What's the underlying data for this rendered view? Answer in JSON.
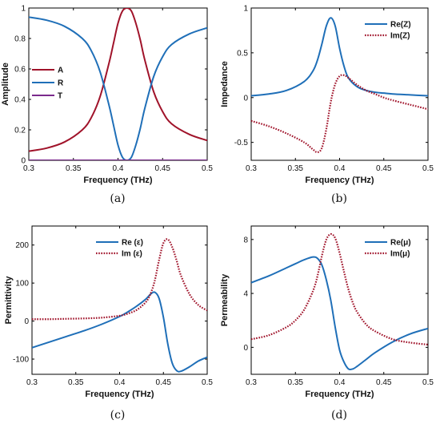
{
  "colors": {
    "dark_red": "#A0132A",
    "blue": "#1F6FB8",
    "purple": "#7B2A8C",
    "axis": "#000000"
  },
  "chart_data": [
    {
      "panel": "(a)",
      "type": "line",
      "xlabel": "Frequency (THz)",
      "ylabel": "Amplitude",
      "xlim": [
        0.3,
        0.5
      ],
      "ylim": [
        0,
        1
      ],
      "xticks": [
        "0.3",
        "0.35",
        "0.4",
        "0.45",
        "0.5"
      ],
      "yticks": [
        "0",
        "0.2",
        "0.4",
        "0.6",
        "0.8",
        "1"
      ],
      "legend": "left",
      "x": [
        0.3,
        0.32,
        0.34,
        0.36,
        0.37,
        0.38,
        0.39,
        0.395,
        0.4,
        0.405,
        0.41,
        0.415,
        0.42,
        0.425,
        0.43,
        0.44,
        0.45,
        0.46,
        0.48,
        0.5
      ],
      "series": [
        {
          "name": "A",
          "color": "#A0132A",
          "dash": "solid",
          "values": [
            0.06,
            0.08,
            0.12,
            0.2,
            0.28,
            0.42,
            0.64,
            0.77,
            0.9,
            0.98,
            1.0,
            0.98,
            0.9,
            0.79,
            0.66,
            0.45,
            0.32,
            0.24,
            0.17,
            0.13
          ]
        },
        {
          "name": "R",
          "color": "#1F6FB8",
          "dash": "solid",
          "values": [
            0.94,
            0.92,
            0.88,
            0.8,
            0.72,
            0.58,
            0.36,
            0.23,
            0.1,
            0.02,
            0.0,
            0.02,
            0.1,
            0.21,
            0.34,
            0.55,
            0.68,
            0.76,
            0.83,
            0.87
          ]
        },
        {
          "name": "T",
          "color": "#7B2A8C",
          "dash": "solid",
          "values": [
            0,
            0,
            0,
            0,
            0,
            0,
            0,
            0,
            0,
            0,
            0,
            0,
            0,
            0,
            0,
            0,
            0,
            0,
            0,
            0
          ]
        }
      ]
    },
    {
      "panel": "(b)",
      "type": "line",
      "xlabel": "Frequency (THz)",
      "ylabel": "Impedance",
      "xlim": [
        0.3,
        0.5
      ],
      "ylim": [
        -0.7,
        1.0
      ],
      "xticks": [
        "0.3",
        "0.35",
        "0.4",
        "0.45",
        "0.5"
      ],
      "yticks": [
        "-0.5",
        "0",
        "0.5",
        "1"
      ],
      "ytick_values": [
        -0.5,
        0,
        0.5,
        1
      ],
      "legend": "top-right",
      "x": [
        0.3,
        0.32,
        0.34,
        0.36,
        0.37,
        0.375,
        0.38,
        0.385,
        0.39,
        0.395,
        0.4,
        0.405,
        0.41,
        0.42,
        0.43,
        0.44,
        0.45,
        0.46,
        0.48,
        0.5
      ],
      "series": [
        {
          "name": "Re(Z)",
          "color": "#1F6FB8",
          "dash": "solid",
          "values": [
            0.02,
            0.04,
            0.08,
            0.18,
            0.3,
            0.42,
            0.6,
            0.8,
            0.89,
            0.8,
            0.55,
            0.35,
            0.22,
            0.12,
            0.08,
            0.06,
            0.05,
            0.04,
            0.03,
            0.02
          ]
        },
        {
          "name": "Im(Z)",
          "color": "#A0132A",
          "dash": "dotted",
          "values": [
            -0.26,
            -0.32,
            -0.4,
            -0.5,
            -0.58,
            -0.61,
            -0.56,
            -0.35,
            -0.05,
            0.15,
            0.24,
            0.25,
            0.22,
            0.14,
            0.08,
            0.04,
            0.0,
            -0.03,
            -0.08,
            -0.13
          ]
        }
      ]
    },
    {
      "panel": "(c)",
      "type": "line",
      "xlabel": "Frequency (THz)",
      "ylabel": "Permittivity",
      "xlim": [
        0.3,
        0.5
      ],
      "ylim": [
        -140,
        250
      ],
      "xticks": [
        "0.3",
        "0.35",
        "0.4",
        "0.45",
        "0.5"
      ],
      "yticks": [
        "-100",
        "0",
        "100",
        "200"
      ],
      "ytick_values": [
        -100,
        0,
        100,
        200
      ],
      "legend": "top-right",
      "legend_labels_note": "symbol epsilon",
      "x": [
        0.3,
        0.32,
        0.34,
        0.36,
        0.38,
        0.4,
        0.41,
        0.42,
        0.43,
        0.435,
        0.44,
        0.445,
        0.45,
        0.455,
        0.46,
        0.465,
        0.47,
        0.48,
        0.49,
        0.5
      ],
      "series": [
        {
          "name": "Re (ε)",
          "color": "#1F6FB8",
          "dash": "solid",
          "values": [
            -70,
            -55,
            -40,
            -25,
            -8,
            12,
            25,
            40,
            58,
            70,
            76,
            60,
            10,
            -60,
            -110,
            -130,
            -132,
            -120,
            -105,
            -95
          ]
        },
        {
          "name": "Im (ε)",
          "color": "#A0132A",
          "dash": "dotted",
          "values": [
            5,
            5,
            6,
            7,
            9,
            14,
            20,
            30,
            50,
            70,
            105,
            160,
            205,
            215,
            195,
            160,
            120,
            70,
            42,
            28
          ]
        }
      ]
    },
    {
      "panel": "(d)",
      "type": "line",
      "xlabel": "Frequency (THz)",
      "ylabel": "Permeability",
      "xlim": [
        0.3,
        0.5
      ],
      "ylim": [
        -2,
        9
      ],
      "xticks": [
        "0.3",
        "0.35",
        "0.4",
        "0.45",
        "0.5"
      ],
      "yticks": [
        "0",
        "4",
        "8"
      ],
      "ytick_values": [
        0,
        4,
        8
      ],
      "legend": "top-right",
      "x": [
        0.3,
        0.32,
        0.34,
        0.35,
        0.36,
        0.37,
        0.375,
        0.38,
        0.385,
        0.39,
        0.395,
        0.4,
        0.405,
        0.41,
        0.415,
        0.42,
        0.43,
        0.44,
        0.46,
        0.48,
        0.5
      ],
      "series": [
        {
          "name": "Re(μ)",
          "color": "#1F6FB8",
          "dash": "solid",
          "values": [
            4.8,
            5.3,
            5.9,
            6.2,
            6.5,
            6.7,
            6.6,
            6.1,
            5.0,
            3.5,
            1.5,
            -0.2,
            -1.1,
            -1.6,
            -1.6,
            -1.4,
            -0.9,
            -0.4,
            0.4,
            1.0,
            1.4
          ]
        },
        {
          "name": "Im(μ)",
          "color": "#A0132A",
          "dash": "dotted",
          "values": [
            0.6,
            0.9,
            1.5,
            2.0,
            2.8,
            4.2,
            5.3,
            6.8,
            8.0,
            8.4,
            8.1,
            7.0,
            5.6,
            4.3,
            3.3,
            2.6,
            1.7,
            1.2,
            0.6,
            0.35,
            0.2
          ]
        }
      ]
    }
  ]
}
